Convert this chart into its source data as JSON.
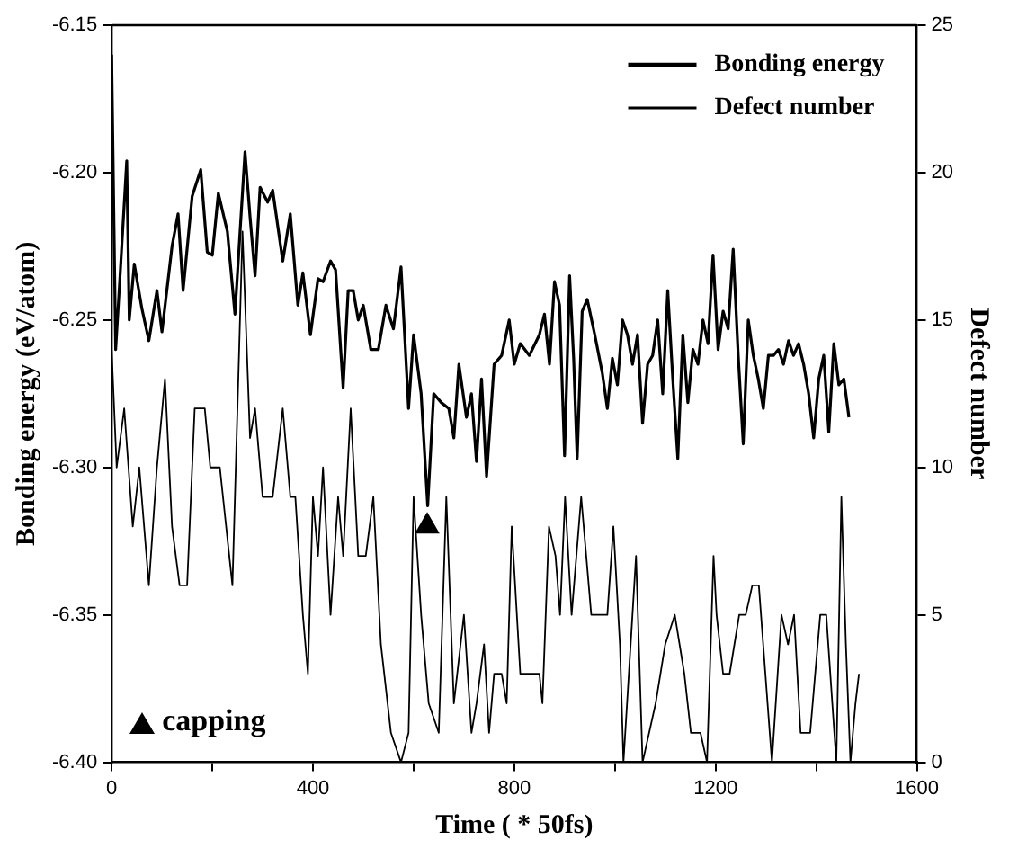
{
  "chart_data": {
    "type": "line",
    "xlabel": "Time ( * 50fs)",
    "ylabel": "Bonding energy (eV/atom)",
    "y2label": "Defect number",
    "xlim": [
      0,
      1600
    ],
    "xticks": [
      0,
      {
        "value": 200,
        "label": null
      },
      400,
      {
        "value": 600,
        "label": null
      },
      800,
      {
        "value": 1000,
        "label": null
      },
      1200,
      {
        "value": 1400,
        "label": null
      },
      1600
    ],
    "ylim": [
      -6.4,
      -6.15
    ],
    "yticks": [
      {
        "value": -6.4,
        "label": "-6.40"
      },
      {
        "value": -6.35,
        "label": "-6.35"
      },
      {
        "value": -6.3,
        "label": "-6.30"
      },
      {
        "value": -6.25,
        "label": "-6.25"
      },
      {
        "value": -6.2,
        "label": "-6.20"
      },
      {
        "value": -6.15,
        "label": "-6.15"
      }
    ],
    "y2lim": [
      0,
      25
    ],
    "y2ticks": [
      0,
      5,
      10,
      15,
      20,
      25
    ],
    "annotations": [
      "capping"
    ],
    "grid": false,
    "legend": "top right",
    "marker": "none",
    "line_style": "solid",
    "series": [
      {
        "name": "Bonding energy",
        "color": "#000000",
        "x": [
          0,
          8,
          15,
          30,
          35,
          45,
          60,
          74,
          90,
          100,
          120,
          132,
          142,
          160,
          177,
          190,
          200,
          212,
          230,
          245,
          265,
          275,
          285,
          295,
          310,
          320,
          340,
          355,
          370,
          380,
          395,
          410,
          420,
          435,
          445,
          460,
          470,
          480,
          490,
          500,
          515,
          530,
          545,
          560,
          575,
          590,
          600,
          615,
          628,
          640,
          655,
          670,
          680,
          690,
          705,
          715,
          725,
          735,
          745,
          760,
          775,
          790,
          800,
          812,
          830,
          850,
          860,
          870,
          880,
          890,
          900,
          910,
          918,
          925,
          935,
          945,
          960,
          975,
          985,
          995,
          1005,
          1015,
          1025,
          1035,
          1045,
          1055,
          1065,
          1075,
          1085,
          1095,
          1105,
          1115,
          1125,
          1135,
          1145,
          1155,
          1165,
          1175,
          1185,
          1195,
          1205,
          1215,
          1225,
          1235,
          1245,
          1255,
          1265,
          1275,
          1285,
          1295,
          1305,
          1315,
          1325,
          1335,
          1345,
          1355,
          1365,
          1375,
          1385,
          1395,
          1405,
          1415,
          1425,
          1435,
          1445,
          1455,
          1465
        ],
        "values": [
          -6.16,
          -6.26,
          -6.24,
          -6.196,
          -6.25,
          -6.231,
          -6.246,
          -6.257,
          -6.24,
          -6.254,
          -6.225,
          -6.214,
          -6.24,
          -6.208,
          -6.199,
          -6.227,
          -6.228,
          -6.207,
          -6.22,
          -6.248,
          -6.193,
          -6.215,
          -6.235,
          -6.205,
          -6.21,
          -6.206,
          -6.23,
          -6.214,
          -6.245,
          -6.234,
          -6.255,
          -6.236,
          -6.237,
          -6.23,
          -6.233,
          -6.273,
          -6.24,
          -6.24,
          -6.25,
          -6.245,
          -6.26,
          -6.26,
          -6.245,
          -6.253,
          -6.232,
          -6.28,
          -6.255,
          -6.275,
          -6.313,
          -6.275,
          -6.278,
          -6.28,
          -6.29,
          -6.265,
          -6.283,
          -6.275,
          -6.298,
          -6.27,
          -6.303,
          -6.265,
          -6.262,
          -6.25,
          -6.265,
          -6.258,
          -6.262,
          -6.255,
          -6.248,
          -6.265,
          -6.237,
          -6.245,
          -6.296,
          -6.235,
          -6.263,
          -6.297,
          -6.247,
          -6.243,
          -6.255,
          -6.268,
          -6.28,
          -6.263,
          -6.272,
          -6.25,
          -6.255,
          -6.265,
          -6.255,
          -6.285,
          -6.265,
          -6.262,
          -6.25,
          -6.275,
          -6.24,
          -6.27,
          -6.297,
          -6.255,
          -6.278,
          -6.26,
          -6.265,
          -6.25,
          -6.258,
          -6.228,
          -6.26,
          -6.247,
          -6.253,
          -6.226,
          -6.262,
          -6.292,
          -6.25,
          -6.262,
          -6.27,
          -6.28,
          -6.262,
          -6.262,
          -6.26,
          -6.265,
          -6.257,
          -6.262,
          -6.258,
          -6.265,
          -6.275,
          -6.29,
          -6.27,
          -6.262,
          -6.288,
          -6.258,
          -6.272,
          -6.27,
          -6.283
        ]
      },
      {
        "name": "Defect number",
        "color": "#000000",
        "axis": "y2",
        "x": [
          0,
          10,
          25,
          42,
          55,
          74,
          90,
          106,
          120,
          135,
          150,
          165,
          185,
          196,
          215,
          240,
          260,
          275,
          285,
          300,
          320,
          340,
          355,
          365,
          380,
          390,
          400,
          410,
          420,
          435,
          450,
          460,
          475,
          490,
          505,
          520,
          535,
          555,
          575,
          590,
          600,
          615,
          630,
          650,
          665,
          680,
          700,
          715,
          725,
          740,
          750,
          760,
          775,
          785,
          795,
          812,
          850,
          856,
          869,
          882,
          891,
          901,
          914,
          933,
          953,
          985,
          997,
          1010,
          1017,
          1042,
          1055,
          1081,
          1100,
          1119,
          1138,
          1151,
          1170,
          1183,
          1196,
          1202,
          1215,
          1228,
          1247,
          1260,
          1273,
          1286,
          1299,
          1312,
          1331,
          1344,
          1356,
          1369,
          1388,
          1408,
          1420,
          1440,
          1450,
          1459,
          1468,
          1478,
          1485
        ],
        "values": [
          14,
          10,
          12,
          8,
          10,
          6,
          10,
          13,
          8,
          6,
          6,
          12,
          12,
          10,
          10,
          6,
          18,
          11,
          12,
          9,
          9,
          12,
          9,
          9,
          5,
          3,
          9,
          7,
          10,
          5,
          9,
          7,
          12,
          7,
          7,
          9,
          4,
          1,
          0,
          1,
          9,
          5,
          2,
          1,
          9,
          2,
          5,
          1,
          2,
          4,
          1,
          3,
          3,
          2,
          8,
          3,
          3,
          2,
          8,
          7,
          5,
          9,
          5,
          9,
          5,
          5,
          8,
          4,
          0,
          7,
          0,
          2,
          4,
          5,
          3,
          1,
          1,
          0,
          7,
          5,
          3,
          3,
          5,
          5,
          6,
          6,
          3,
          0,
          5,
          4,
          5,
          1,
          1,
          5,
          5,
          0,
          9,
          4,
          0,
          2,
          3
        ]
      },
      {
        "type": "scatter",
        "marker": "triangle",
        "color": "#000000",
        "x": [
          627
        ],
        "values": [
          -6.32
        ]
      }
    ]
  }
}
